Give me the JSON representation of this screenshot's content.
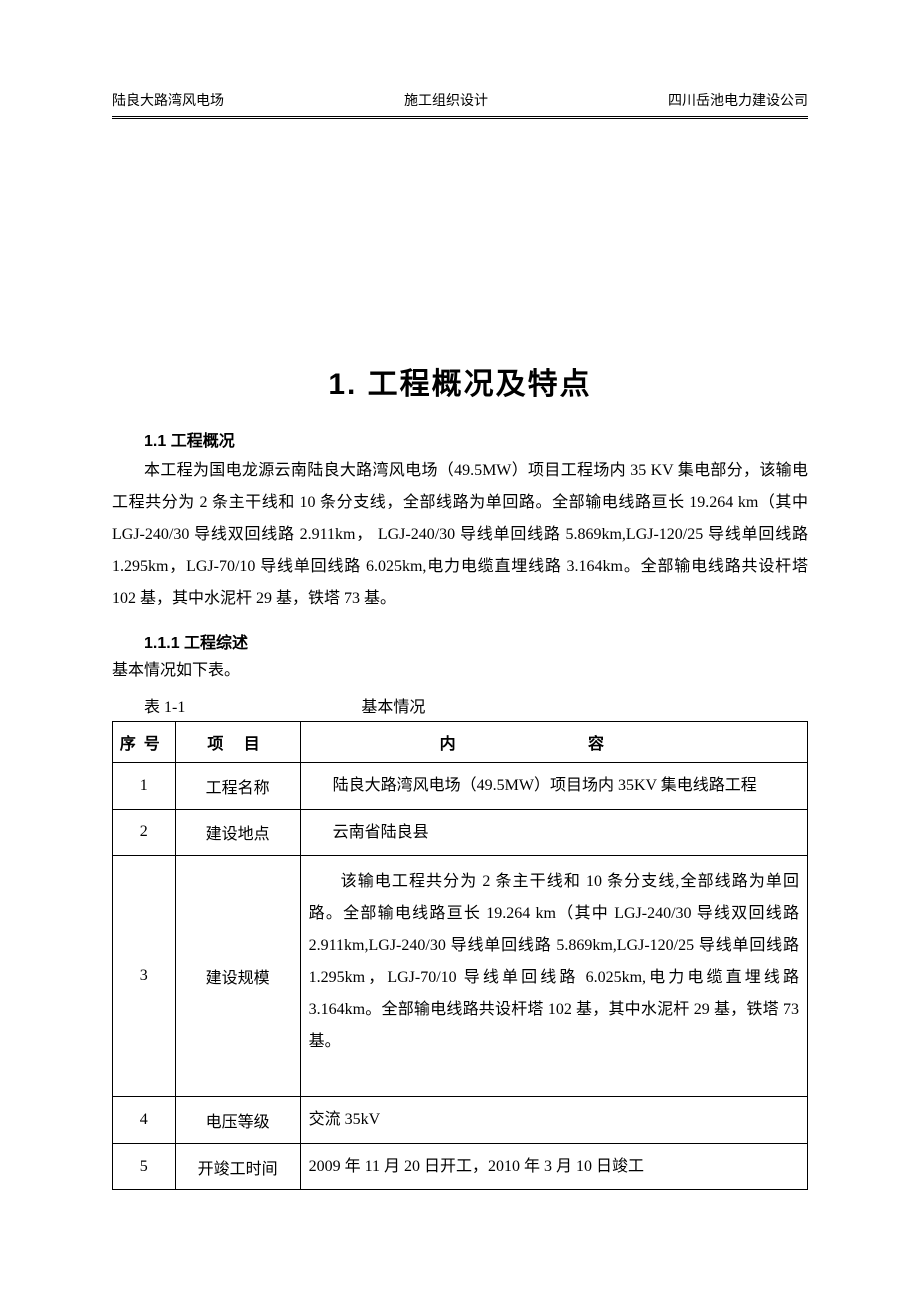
{
  "header": {
    "left": "陆良大路湾风电场",
    "center": "施工组织设计",
    "right": "四川岳池电力建设公司"
  },
  "chapter": {
    "title": "1.  工程概况及特点"
  },
  "section11": {
    "heading": "1.1 工程概况",
    "body": "本工程为国电龙源云南陆良大路湾风电场（49.5MW）项目工程场内 35 KV 集电部分，该输电工程共分为 2 条主干线和 10 条分支线，全部线路为单回路。全部输电线路亘长 19.264 km（其中 LGJ-240/30 导线双回线路 2.911km， LGJ-240/30 导线单回线路 5.869km,LGJ-120/25 导线单回线路 1.295km，LGJ-70/10 导线单回线路 6.025km,电力电缆直埋线路 3.164km。全部输电线路共设杆塔 102 基，其中水泥杆 29 基，铁塔 73 基。"
  },
  "section111": {
    "heading": "1.1.1 工程综述",
    "intro": "基本情况如下表。"
  },
  "table": {
    "label": "表 1-1",
    "caption": "基本情况",
    "columns": {
      "seq": "序号",
      "item": "项  目",
      "content": "内    容"
    },
    "col_widths": [
      "9%",
      "18%",
      "73%"
    ],
    "border_color": "#000000",
    "rows": [
      {
        "seq": "1",
        "item": "工程名称",
        "content": "陆良大路湾风电场（49.5MW）项目场内 35KV 集电线路工程",
        "style": "single"
      },
      {
        "seq": "2",
        "item": "建设地点",
        "content": "云南省陆良县",
        "style": "single"
      },
      {
        "seq": "3",
        "item": "建设规模",
        "content": "该输电工程共分为 2 条主干线和 10 条分支线,全部线路为单回路。全部输电线路亘长 19.264 km（其中 LGJ-240/30 导线双回线路 2.911km,LGJ-240/30 导线单回线路 5.869km,LGJ-120/25 导线单回线路 1.295km，LGJ-70/10 导线单回线路 6.025km,电力电缆直埋线路 3.164km。全部输电线路共设杆塔 102 基，其中水泥杆 29 基，铁塔 73 基。",
        "style": "para",
        "extra_bottom": true
      },
      {
        "seq": "4",
        "item": "电压等级",
        "content": "交流 35kV",
        "style": "plain"
      },
      {
        "seq": "5",
        "item": "开竣工时间",
        "content": "2009 年 11 月 20 日开工，2010 年 3 月 10 日竣工",
        "style": "plain"
      }
    ]
  },
  "colors": {
    "text": "#000000",
    "background": "#ffffff"
  },
  "typography": {
    "body_fontsize_pt": 12,
    "title_fontsize_pt": 22,
    "line_height": 2.0
  }
}
